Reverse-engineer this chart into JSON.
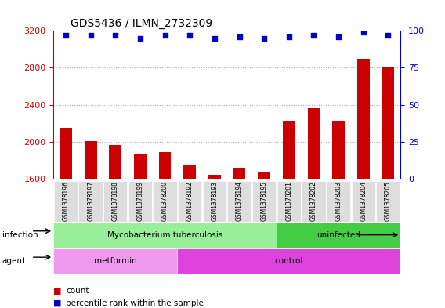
{
  "title": "GDS5436 / ILMN_2732309",
  "samples": [
    "GSM1378196",
    "GSM1378197",
    "GSM1378198",
    "GSM1378199",
    "GSM1378200",
    "GSM1378192",
    "GSM1378193",
    "GSM1378194",
    "GSM1378195",
    "GSM1378201",
    "GSM1378202",
    "GSM1378203",
    "GSM1378204",
    "GSM1378205"
  ],
  "counts": [
    2150,
    2010,
    1960,
    1860,
    1890,
    1740,
    1640,
    1720,
    1680,
    2220,
    2360,
    2220,
    2900,
    2800
  ],
  "percentiles": [
    97,
    97,
    97,
    95,
    97,
    97,
    95,
    96,
    95,
    96,
    97,
    96,
    99,
    97
  ],
  "ylim_left": [
    1600,
    3200
  ],
  "ylim_right": [
    0,
    100
  ],
  "yticks_left": [
    1600,
    2000,
    2400,
    2800,
    3200
  ],
  "yticks_right": [
    0,
    25,
    50,
    75,
    100
  ],
  "bar_color": "#cc0000",
  "dot_color": "#0000cc",
  "infection_groups": [
    {
      "label": "Mycobacterium tuberculosis",
      "start": 0,
      "end": 9,
      "color": "#99ee99"
    },
    {
      "label": "uninfected",
      "start": 9,
      "end": 14,
      "color": "#44cc44"
    }
  ],
  "agent_groups": [
    {
      "label": "metformin",
      "start": 0,
      "end": 5,
      "color": "#ee99ee"
    },
    {
      "label": "control",
      "start": 5,
      "end": 14,
      "color": "#dd44dd"
    }
  ],
  "infection_label": "infection",
  "agent_label": "agent",
  "legend_count_label": "count",
  "legend_pct_label": "percentile rank within the sample",
  "tick_color_left": "#cc0000",
  "tick_color_right": "#0000cc",
  "background_color": "#ffffff",
  "bar_width": 0.5,
  "grid_color": "#aaaaaa"
}
